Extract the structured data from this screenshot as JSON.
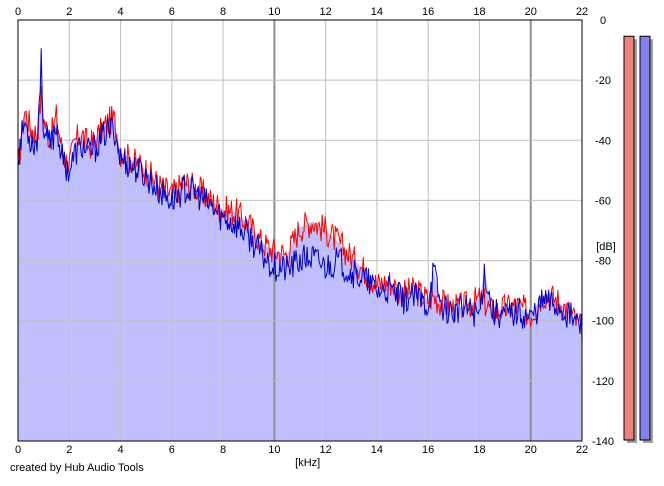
{
  "credit": "created by Hub Audio Tools",
  "colors": {
    "fill": "#c0c0ff",
    "left_channel": "#ff0000",
    "right_channel": "#0000cc",
    "grid": "#c0c0c0",
    "grid_major": "#909090",
    "meter_left": "#f08080",
    "meter_right": "#8080f0"
  },
  "chart_data": {
    "type": "line",
    "title": "",
    "xlabel": "[kHz]",
    "ylabel": "[dB]",
    "xlim": [
      0,
      22
    ],
    "ylim": [
      -140,
      0
    ],
    "x_ticks": [
      "0",
      "2",
      "4",
      "6",
      "8",
      "10",
      "12",
      "14",
      "16",
      "18",
      "20",
      "22"
    ],
    "y_ticks": [
      "0",
      "-20",
      "-40",
      "-60",
      "-80",
      "-100",
      "-120",
      "-140"
    ],
    "grid": true,
    "x": [
      0,
      0.25,
      0.5,
      0.75,
      0.9,
      1,
      1.25,
      1.5,
      1.75,
      2,
      2.25,
      2.5,
      2.75,
      3,
      3.25,
      3.5,
      3.75,
      4,
      4.5,
      5,
      5.5,
      6,
      6.5,
      7,
      7.5,
      8,
      8.5,
      9,
      9.5,
      10,
      10.5,
      11,
      11.5,
      12,
      12.5,
      13,
      13.5,
      14,
      14.5,
      15,
      15.5,
      16,
      16.2,
      16.5,
      17,
      17.5,
      18,
      18.2,
      18.5,
      19,
      19.5,
      20,
      20.5,
      21,
      21.5,
      22
    ],
    "series": [
      {
        "values": [
          -50,
          -30,
          -36,
          -38,
          -25,
          -33,
          -40,
          -32,
          -45,
          -48,
          -40,
          -38,
          -42,
          -40,
          -37,
          -34,
          -33,
          -44,
          -47,
          -50,
          -55,
          -58,
          -54,
          -56,
          -60,
          -63,
          -64,
          -68,
          -74,
          -77,
          -78,
          -69,
          -67,
          -70,
          -74,
          -79,
          -83,
          -88,
          -87,
          -91,
          -90,
          -93,
          -92,
          -94,
          -96,
          -95,
          -93,
          -94,
          -97,
          -96,
          -95,
          -98,
          -91,
          -93,
          -97,
          -103
        ]
      },
      {
        "values": [
          -45,
          -34,
          -40,
          -41,
          -13,
          -37,
          -42,
          -35,
          -47,
          -50,
          -44,
          -42,
          -44,
          -43,
          -39,
          -37,
          -36,
          -46,
          -49,
          -52,
          -57,
          -60,
          -56,
          -58,
          -62,
          -66,
          -68,
          -72,
          -78,
          -82,
          -83,
          -80,
          -79,
          -82,
          -80,
          -84,
          -86,
          -90,
          -90,
          -93,
          -92,
          -95,
          -83,
          -95,
          -97,
          -96,
          -98,
          -83,
          -97,
          -98,
          -97,
          -99,
          -93,
          -95,
          -98,
          -102
        ]
      }
    ],
    "meters": {
      "left_level": 0.98,
      "right_level": 0.98
    }
  }
}
